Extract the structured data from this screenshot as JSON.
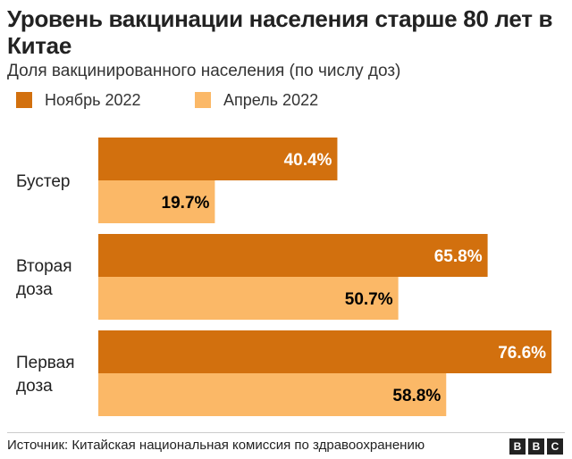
{
  "title": "Уровень вакцинации населения старше 80 лет в Китае",
  "subtitle": "Доля вакцинированного населения (по числу доз)",
  "source": "Источник: Китайская национальная комиссия по здравоохранению",
  "logo": [
    "B",
    "B",
    "C"
  ],
  "colors": {
    "november": "#d2700e",
    "april": "#fbb867",
    "text": "#222222",
    "label_dark": "#000000",
    "label_light": "#ffffff"
  },
  "chart_data": {
    "type": "bar",
    "orientation": "horizontal",
    "title": "Уровень вакцинации населения старше 80 лет в Китае",
    "subtitle": "Доля вакцинированного населения (по числу доз)",
    "categories": [
      [
        "Бустер"
      ],
      [
        "Вторая",
        "доза"
      ],
      [
        "Первая",
        "доза"
      ]
    ],
    "series": [
      {
        "name": "Ноябрь 2022",
        "values": [
          40.4,
          65.8,
          76.6
        ],
        "labels": [
          "40.4%",
          "65.8%",
          "76.6%"
        ],
        "color": "#d2700e"
      },
      {
        "name": "Апрель 2022",
        "values": [
          19.7,
          50.7,
          58.8
        ],
        "labels": [
          "19.7%",
          "50.7%",
          "58.8%"
        ],
        "color": "#fbb867"
      }
    ],
    "xlim": [
      0,
      100
    ],
    "grid": false,
    "legend_position": "top-left"
  }
}
